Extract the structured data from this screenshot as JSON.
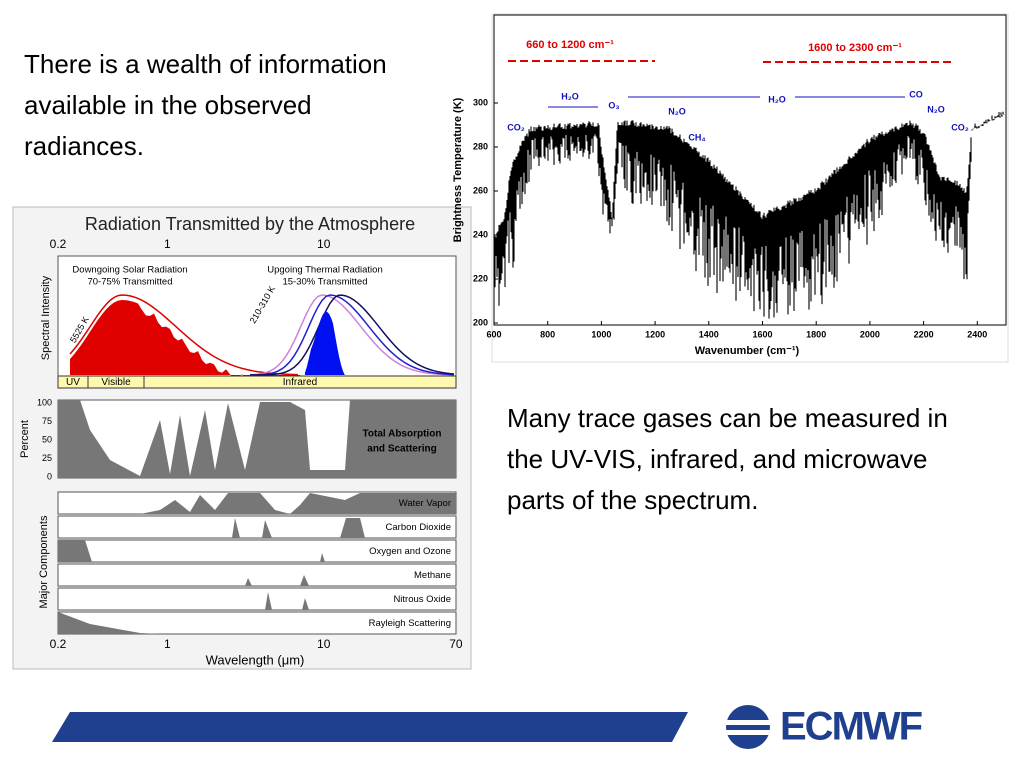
{
  "text_left": "There is a wealth of information available in the observed radiances.",
  "text_right": "Many trace gases can be measured in the UV-VIS, infrared, and microwave parts of the spectrum.",
  "figure_spectrum": {
    "y_label": "Brightness Temperature (K)",
    "x_label": "Wavenumber (cm⁻¹)",
    "x_ticks": [
      "600",
      "800",
      "1000",
      "1200",
      "1400",
      "1600",
      "1800",
      "2000",
      "2200",
      "2400"
    ],
    "y_ticks": [
      "200",
      "220",
      "240",
      "260",
      "280",
      "300"
    ],
    "bands": [
      "660 to 1200 cm⁻¹",
      "1600 to 2300 cm⁻¹"
    ],
    "gas_labels": [
      "CO₂",
      "H₂O",
      "O₃",
      "N₂O",
      "CH₄",
      "H₂O",
      "CO",
      "N₂O",
      "CO₂"
    ]
  },
  "figure_atmosphere": {
    "title": "Radiation Transmitted by the Atmosphere",
    "top_ticks": [
      "0.2",
      "1",
      "10"
    ],
    "solar": "Downgoing Solar Radiation",
    "solar_pct": "70-75% Transmitted",
    "thermal": "Upgoing Thermal Radiation",
    "thermal_pct": "15-30% Transmitted",
    "temp_sun": "5525 K",
    "temp_earth": "210-310 K",
    "intensity_label": "Spectral Intensity",
    "bands": [
      "UV",
      "Visible",
      "Infrared"
    ],
    "percent_label": "Percent",
    "percent_ticks": [
      "100",
      "75",
      "50",
      "25",
      "0"
    ],
    "absorption": [
      "Total Absorption",
      "and Scattering"
    ],
    "components_label": "Major Components",
    "components": [
      "Water Vapor",
      "Carbon Dioxide",
      "Oxygen and Ozone",
      "Methane",
      "Nitrous Oxide",
      "Rayleigh Scattering"
    ],
    "bottom_ticks": [
      "0.2",
      "1",
      "10",
      "70"
    ],
    "x_label": "Wavelength (μm)"
  },
  "logo": "ECMWF"
}
